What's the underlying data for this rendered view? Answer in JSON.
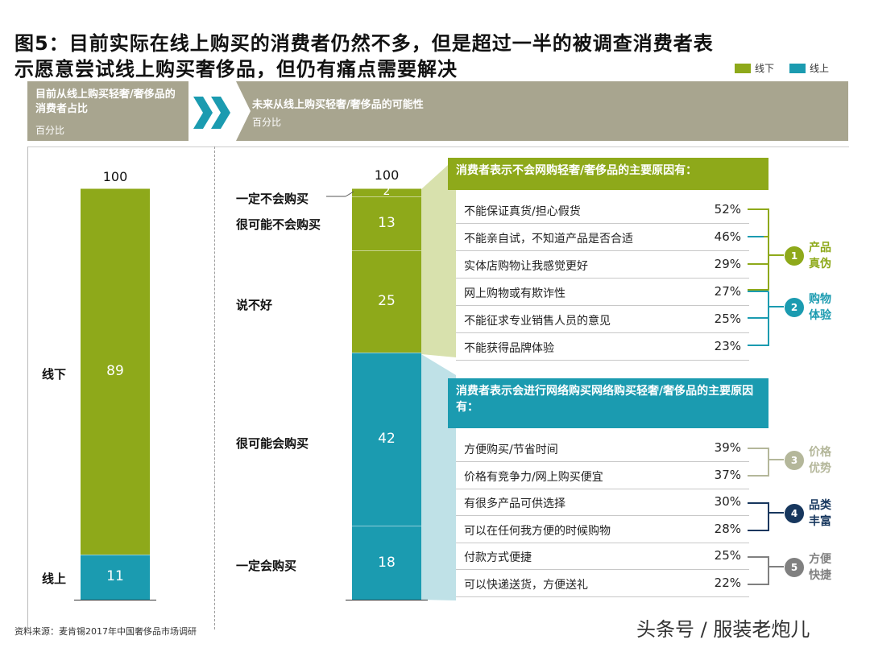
{
  "title": {
    "line1": "图5：目前实际在线上购买的消费者仍然不多，但是超过一半的被调查消费者表",
    "line2": "示愿意尝试线上购买奢侈品，但仍有痛点需要解决"
  },
  "legend": [
    {
      "label": "线下",
      "color": "#8ea91a"
    },
    {
      "label": "线上",
      "color": "#1b9bb0"
    }
  ],
  "left_header": {
    "title": "目前从线上购买轻奢/奢侈品的消费者占比",
    "subtitle": "百分比"
  },
  "right_header": {
    "title": "未来从线上购买轻奢/奢侈品的可能性",
    "subtitle": "百分比"
  },
  "chart_data": [
    {
      "type": "bar",
      "stacked": true,
      "total": 100,
      "segments": [
        {
          "name": "线下",
          "value": 89,
          "color": "#8ea91a"
        },
        {
          "name": "线上",
          "value": 11,
          "color": "#1b9bb0"
        }
      ]
    },
    {
      "type": "bar",
      "stacked": true,
      "total": 100,
      "segments": [
        {
          "name": "一定不会购买",
          "value": 2,
          "color": "#8ea91a"
        },
        {
          "name": "很可能不会购买",
          "value": 13,
          "color": "#8ea91a"
        },
        {
          "name": "说不好",
          "value": 25,
          "color": "#8ea91a"
        },
        {
          "name": "很可能会购买",
          "value": 42,
          "color": "#1b9bb0"
        },
        {
          "name": "一定会购买",
          "value": 18,
          "color": "#1b9bb0"
        }
      ]
    },
    {
      "type": "table",
      "title": "消费者表示不会网购轻奢/奢侈品的主要原因有：",
      "color": "#8ea91a",
      "rows": [
        {
          "label": "不能保证真货/担心假货",
          "value": "52%"
        },
        {
          "label": "不能亲自试，不知道产品是否合适",
          "value": "46%"
        },
        {
          "label": "实体店购物让我感觉更好",
          "value": "29%"
        },
        {
          "label": "网上购物或有欺诈性",
          "value": "27%"
        },
        {
          "label": "不能征求专业销售人员的意见",
          "value": "25%"
        },
        {
          "label": "不能获得品牌体验",
          "value": "23%"
        }
      ],
      "groups": [
        {
          "num": "1",
          "label": "产品真伪",
          "color": "#8ea91a"
        },
        {
          "num": "2",
          "label": "购物体验",
          "color": "#1b9bb0"
        }
      ]
    },
    {
      "type": "table",
      "title": "消费者表示会进行网络购买网络购买轻奢/奢侈品的主要原因有：",
      "color": "#1b9bb0",
      "rows": [
        {
          "label": "方便购买/节省时间",
          "value": "39%"
        },
        {
          "label": "价格有竞争力/网上购买便宜",
          "value": "37%"
        },
        {
          "label": "有很多产品可供选择",
          "value": "30%"
        },
        {
          "label": "可以在任何我方便的时候购物",
          "value": "28%"
        },
        {
          "label": "付款方式便捷",
          "value": "25%"
        },
        {
          "label": "可以快递送货，方便送礼",
          "value": "22%"
        }
      ],
      "groups": [
        {
          "num": "3",
          "label": "价格优势",
          "color": "#b4b79a"
        },
        {
          "num": "4",
          "label": "品类丰富",
          "color": "#17375e"
        },
        {
          "num": "5",
          "label": "方便快捷",
          "color": "#808080"
        }
      ]
    }
  ],
  "source": "资料来源：麦肯锡2017年中国奢侈品市场调研",
  "watermark": "头条号 / 服装老炮儿"
}
